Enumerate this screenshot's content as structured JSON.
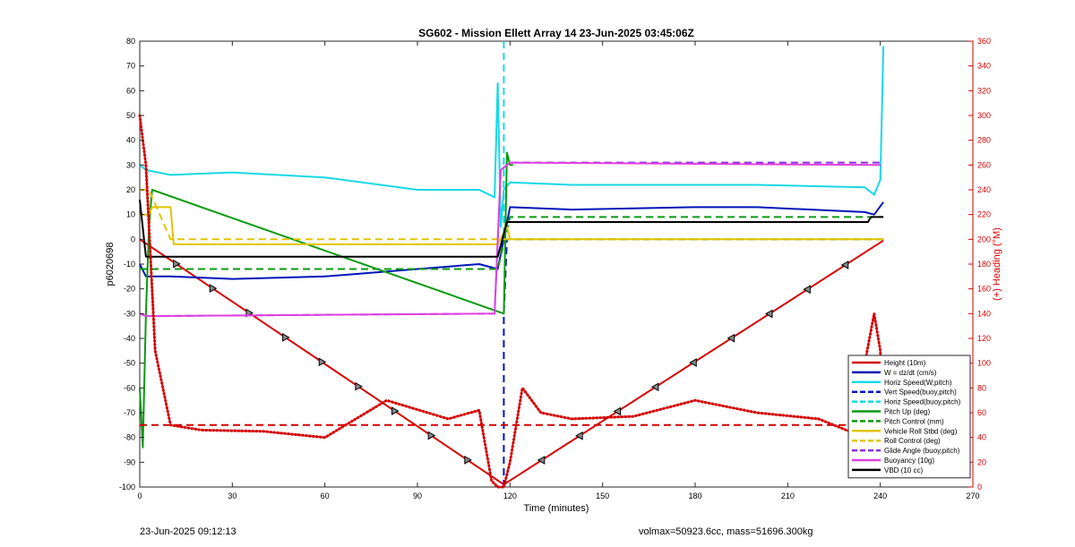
{
  "chart_data": {
    "type": "line",
    "title": "SG602 - Mission Ellett Array 14 23-Jun-2025 03:45:06Z",
    "xlabel": "Time (minutes)",
    "ylabel": "p6020698",
    "y2label": "(+) Heading (°M)",
    "xlim": [
      0,
      270
    ],
    "ylim": [
      -100,
      80
    ],
    "y2lim": [
      0,
      360
    ],
    "xticks": [
      "0",
      "30",
      "60",
      "90",
      "120",
      "150",
      "180",
      "210",
      "240",
      "270"
    ],
    "yticks": [
      "80",
      "70",
      "60",
      "50",
      "40",
      "30",
      "20",
      "10",
      "0",
      "-10",
      "-20",
      "-30",
      "-40",
      "-50",
      "-60",
      "-70",
      "-80",
      "-90",
      "-100"
    ],
    "y2ticks": [
      "360",
      "340",
      "320",
      "300",
      "280",
      "260",
      "240",
      "220",
      "200",
      "180",
      "160",
      "140",
      "120",
      "100",
      "80",
      "60",
      "40",
      "20",
      "0"
    ],
    "grid": false,
    "legend_position": "bottom-right",
    "series": [
      {
        "name": "Height (10m)",
        "color": "#d40000",
        "style": "solid-markers",
        "x": [
          0,
          118,
          241
        ],
        "y": [
          0,
          -99,
          -0.5
        ]
      },
      {
        "name": "W = dz/dt (cm/s)",
        "color": "#0015b8",
        "style": "solid",
        "x": [
          0,
          2,
          10,
          30,
          60,
          90,
          110,
          116,
          118,
          120,
          140,
          180,
          200,
          235,
          238,
          241
        ],
        "y": [
          -10,
          -15,
          -15,
          -16,
          -15,
          -12,
          -10,
          -12,
          0,
          13,
          12,
          13,
          13,
          11,
          10,
          15
        ]
      },
      {
        "name": "Horiz Speed(W,pitch)",
        "color": "#17d8e6",
        "style": "solid",
        "x": [
          0,
          2,
          10,
          30,
          60,
          90,
          110,
          115,
          116,
          117,
          118,
          120,
          140,
          180,
          200,
          235,
          238,
          240,
          241
        ],
        "y": [
          30,
          28,
          26,
          27,
          25,
          20,
          20,
          17,
          63,
          5,
          20,
          23,
          22,
          22,
          22,
          21,
          18,
          24,
          78
        ]
      },
      {
        "name": "Vert Speed(buoy,pitch)",
        "color": "#0015b8",
        "style": "dashed",
        "x": [
          118,
          118,
          119,
          241
        ],
        "y": [
          -100,
          -30,
          0,
          0
        ]
      },
      {
        "name": "Horiz Speed(buoy,pitch)",
        "color": "#17d8e6",
        "style": "dashed",
        "x": [
          118,
          118,
          241
        ],
        "y": [
          80,
          0,
          0
        ]
      },
      {
        "name": "Pitch Up (deg)",
        "color": "#0a9a10",
        "style": "solid",
        "x": [
          0,
          1,
          2,
          3,
          4,
          118,
          119,
          120,
          121
        ],
        "y": [
          -60,
          -84,
          -30,
          5,
          20,
          -30,
          35,
          30,
          30
        ]
      },
      {
        "name": "Pitch Control (mm)",
        "color": "#0a9a10",
        "style": "dashed",
        "x": [
          0,
          116,
          120,
          241
        ],
        "y": [
          -12,
          -12,
          9,
          9
        ]
      },
      {
        "name": "Vehicle Roll Stbd (deg)",
        "color": "#e0c400",
        "style": "solid",
        "x": [
          0,
          3,
          4,
          10,
          11,
          116,
          119,
          120,
          241
        ],
        "y": [
          10,
          10,
          13,
          13,
          -2,
          -2,
          5,
          0,
          0
        ]
      },
      {
        "name": "Roll Control (deg)",
        "color": "#e0c400",
        "style": "dashed",
        "x": [
          0,
          3,
          10,
          116,
          120,
          241
        ],
        "y": [
          20,
          20,
          0,
          0,
          0,
          0
        ]
      },
      {
        "name": "Glide Angle (buoy,pitch)",
        "color": "#8a2be2",
        "style": "dashed",
        "x": [
          0,
          2,
          115,
          117,
          120,
          240
        ],
        "y": [
          -30,
          -31,
          -30,
          28,
          31,
          31
        ]
      },
      {
        "name": "Buoyancy (10g)",
        "color": "#e040e0",
        "style": "solid",
        "x": [
          0,
          2,
          115,
          117,
          120,
          240
        ],
        "y": [
          -30,
          -31,
          -30,
          28,
          31,
          30
        ]
      },
      {
        "name": "VBD (10 cc)",
        "color": "#000000",
        "style": "solid",
        "x": [
          0,
          2,
          4,
          116,
          119,
          120,
          236,
          237,
          241
        ],
        "y": [
          16,
          -7,
          -7,
          -7,
          7,
          7,
          7,
          9,
          9
        ]
      },
      {
        "name": "",
        "color": "#d40000",
        "style": "dotted-heading",
        "axis": "right",
        "x": [
          0,
          2,
          5,
          10,
          20,
          40,
          60,
          80,
          100,
          110,
          114,
          116,
          118,
          120,
          124,
          130,
          140,
          160,
          180,
          200,
          220,
          230,
          235,
          238,
          240,
          241
        ],
        "y": [
          300,
          260,
          110,
          50,
          46,
          45,
          40,
          70,
          55,
          62,
          5,
          0,
          0,
          20,
          80,
          60,
          55,
          57,
          70,
          60,
          55,
          45,
          100,
          140,
          110,
          50
        ]
      },
      {
        "name": "",
        "color": "#d40000",
        "style": "dashed",
        "axis": "right",
        "x": [
          0,
          241
        ],
        "y": [
          50,
          50
        ]
      }
    ],
    "footer_left": "23-Jun-2025 09:12:13",
    "footer_right": "volmax=50923.6cc, mass=51696.300kg"
  }
}
